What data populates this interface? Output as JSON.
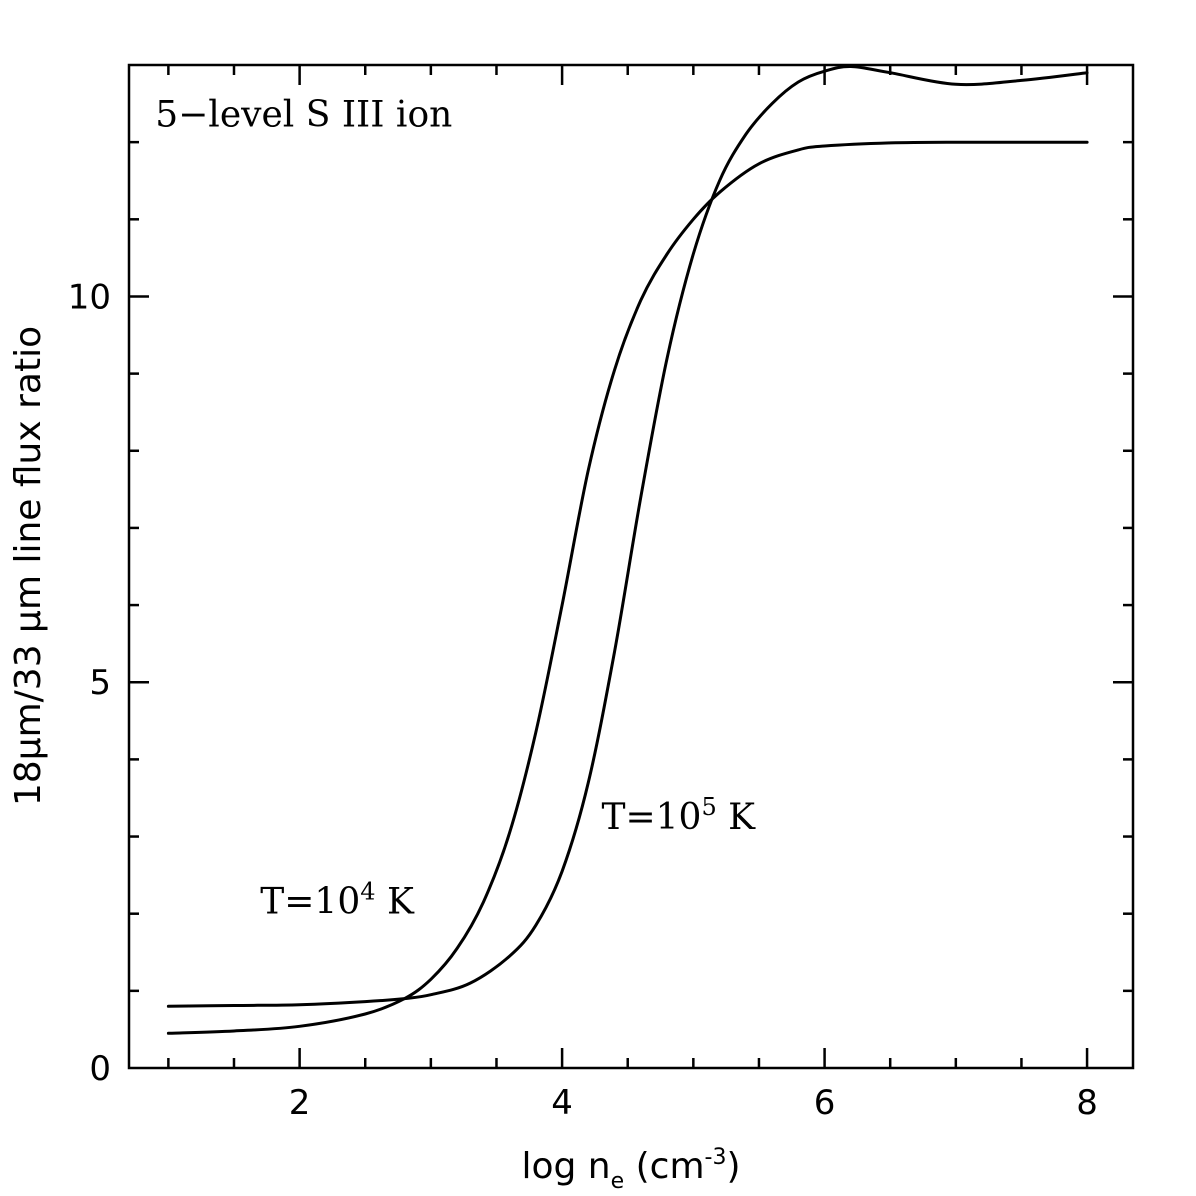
{
  "chart_data": {
    "type": "line",
    "title": "",
    "xlabel": "log n_e (cm^-3)",
    "xlabel_parts": {
      "main": "log n",
      "sub": "e",
      "unit_open": " (cm",
      "sup": "-3",
      "unit_close": ")"
    },
    "ylabel": "18μm/33 μm line flux ratio",
    "xlim": [
      0.7,
      8.35
    ],
    "ylim": [
      0,
      13
    ],
    "x_major_ticks": [
      2,
      4,
      6,
      8
    ],
    "x_tick_labels": [
      "2",
      "4",
      "6",
      "8"
    ],
    "y_major_ticks": [
      0,
      5,
      10
    ],
    "y_tick_labels": [
      "0",
      "5",
      "10"
    ],
    "grid": false,
    "legend": "none",
    "annotations": [
      {
        "text": "5−level S III ion",
        "x": 0.9,
        "y": 12.2
      },
      {
        "main": "T=10",
        "sup": "4",
        "unit": " K",
        "x": 1.7,
        "y": 2.0
      },
      {
        "main": "T=10",
        "sup": "5",
        "unit": " K",
        "x": 4.3,
        "y": 3.1
      }
    ],
    "series": [
      {
        "x": [
          1.0,
          1.5,
          2.0,
          2.5,
          2.8,
          3.0,
          3.2,
          3.4,
          3.6,
          3.8,
          4.0,
          4.2,
          4.4,
          4.6,
          4.8,
          5.0,
          5.2,
          5.5,
          5.8,
          6.0,
          6.5,
          7.0,
          7.5,
          8.0
        ],
        "y": [
          0.45,
          0.48,
          0.54,
          0.7,
          0.9,
          1.15,
          1.55,
          2.15,
          3.05,
          4.35,
          6.0,
          7.75,
          9.05,
          9.95,
          10.55,
          11.0,
          11.35,
          11.72,
          11.9,
          11.95,
          11.99,
          12.0,
          12.0,
          12.0
        ]
      },
      {
        "x": [
          1.0,
          1.5,
          2.0,
          2.5,
          2.8,
          3.0,
          3.3,
          3.6,
          3.8,
          4.0,
          4.2,
          4.4,
          4.6,
          4.8,
          5.0,
          5.2,
          5.4,
          5.6,
          5.8,
          6.0,
          6.2,
          6.5,
          7.0,
          7.5,
          8.0
        ],
        "y": [
          0.8,
          0.81,
          0.82,
          0.86,
          0.9,
          0.95,
          1.1,
          1.45,
          1.85,
          2.55,
          3.7,
          5.4,
          7.4,
          9.2,
          10.55,
          11.5,
          12.1,
          12.5,
          12.78,
          12.92,
          12.98,
          12.9,
          12.75,
          12.8,
          12.9
        ]
      }
    ]
  }
}
